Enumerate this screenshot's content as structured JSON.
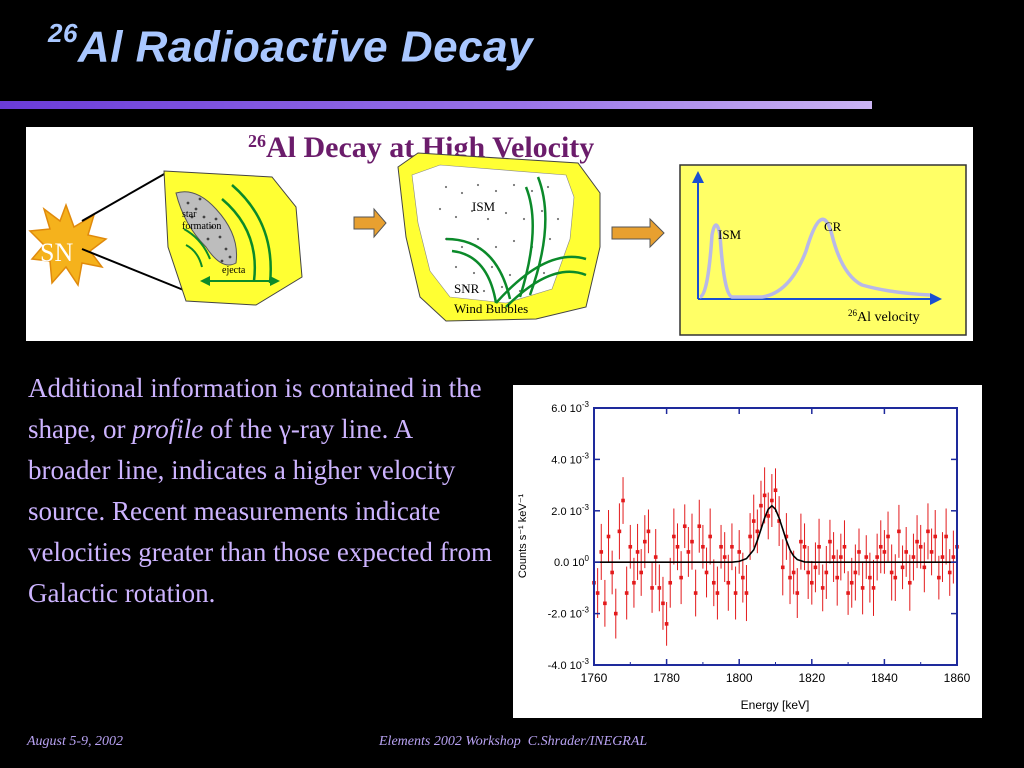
{
  "slide": {
    "title_sup": "26",
    "title_main": "Al Radioactive Decay",
    "colors": {
      "title": "#a9c7ff",
      "text": "#cdb4ff",
      "rule": "#7e58e0",
      "highlight": "#ffff66"
    }
  },
  "diagram": {
    "heading_sup": "26",
    "heading_main": "Al Decay at High Velocity",
    "sn_label": "SN",
    "star_formation_line1": "star",
    "star_formation_line2": "formation",
    "ejecta_label": "ejecta",
    "ism_label": "ISM",
    "snr_label": "SNR",
    "wind_bubbles_label": "Wind Bubbles",
    "profile_ism_label": "ISM",
    "profile_cr_label": "CR",
    "velocity_axis_sup": "26",
    "velocity_axis_label": "Al velocity"
  },
  "body": {
    "text_1": "Additional information is contained in the shape, or ",
    "text_italic": "profile",
    "text_2": " of the γ-ray line. A broader line, indicates a higher velocity source. Recent measurements indicate velocities greater than those expected from Galactic rotation."
  },
  "chart_data": {
    "type": "scatter",
    "xlabel": "Energy [keV]",
    "ylabel": "Counts s⁻¹ keV⁻¹",
    "xlim": [
      1760,
      1860
    ],
    "ylim": [
      -0.004,
      0.006
    ],
    "x_ticks": [
      "1760",
      "1780",
      "1800",
      "1820",
      "1840",
      "1860"
    ],
    "y_ticks": [
      {
        "mantissa": "-4.0 10",
        "exp": "-3"
      },
      {
        "mantissa": "-2.0 10",
        "exp": "-3"
      },
      {
        "mantissa": "0.0 10",
        "exp": "0"
      },
      {
        "mantissa": "2.0 10",
        "exp": "-3"
      },
      {
        "mantissa": "4.0 10",
        "exp": "-3"
      },
      {
        "mantissa": "6.0 10",
        "exp": "-3"
      }
    ],
    "series": [
      {
        "kind": "data-points-with-error-bars",
        "color": "#e31a1c",
        "x": [
          1760,
          1761,
          1762,
          1763,
          1764,
          1765,
          1766,
          1767,
          1768,
          1769,
          1770,
          1771,
          1772,
          1773,
          1774,
          1775,
          1776,
          1777,
          1778,
          1779,
          1780,
          1781,
          1782,
          1783,
          1784,
          1785,
          1786,
          1787,
          1788,
          1789,
          1790,
          1791,
          1792,
          1793,
          1794,
          1795,
          1796,
          1797,
          1798,
          1799,
          1800,
          1801,
          1802,
          1803,
          1804,
          1805,
          1806,
          1807,
          1808,
          1809,
          1810,
          1811,
          1812,
          1813,
          1814,
          1815,
          1816,
          1817,
          1818,
          1819,
          1820,
          1821,
          1822,
          1823,
          1824,
          1825,
          1826,
          1827,
          1828,
          1829,
          1830,
          1831,
          1832,
          1833,
          1834,
          1835,
          1836,
          1837,
          1838,
          1839,
          1840,
          1841,
          1842,
          1843,
          1844,
          1845,
          1846,
          1847,
          1848,
          1849,
          1850,
          1851,
          1852,
          1853,
          1854,
          1855,
          1856,
          1857,
          1858,
          1859,
          1860
        ],
        "y": [
          -0.0008,
          -0.0012,
          0.0004,
          -0.0016,
          0.001,
          -0.0004,
          -0.002,
          0.0012,
          0.0024,
          -0.0012,
          0.0006,
          -0.0008,
          0.0004,
          -0.0004,
          0.0008,
          0.0012,
          -0.001,
          0.0002,
          -0.001,
          -0.0016,
          -0.0024,
          -0.0008,
          0.001,
          0.0006,
          -0.0006,
          0.0014,
          0.0004,
          0.0008,
          -0.0012,
          0.0014,
          0.0006,
          -0.0004,
          0.001,
          -0.0008,
          -0.0012,
          0.0006,
          0.0002,
          -0.0008,
          0.0006,
          -0.0012,
          0.0004,
          -0.0006,
          -0.0012,
          0.001,
          0.0016,
          0.0012,
          0.0022,
          0.0026,
          0.0018,
          0.0024,
          0.0028,
          0.0016,
          -0.0002,
          0.001,
          -0.0006,
          -0.0004,
          -0.0012,
          0.0008,
          0.0006,
          -0.0004,
          -0.0008,
          -0.0002,
          0.0006,
          -0.001,
          -0.0004,
          0.0008,
          0.0002,
          -0.0006,
          0.0002,
          0.0006,
          -0.0012,
          -0.0008,
          -0.0004,
          0.0004,
          -0.001,
          0.0002,
          -0.0006,
          -0.001,
          0.0002,
          0.0006,
          0.0004,
          0.001,
          -0.0004,
          -0.0006,
          0.0012,
          -0.0002,
          0.0004,
          -0.0008,
          0.0002,
          0.0008,
          0.0006,
          -0.0002,
          0.0012,
          0.0004,
          0.001,
          -0.0006,
          0.0002,
          0.001,
          -0.0004,
          0.0002,
          0.0006
        ]
      },
      {
        "kind": "gaussian-fit",
        "color": "#000000",
        "x": [
          1760,
          1790,
          1798,
          1800,
          1802,
          1804,
          1805,
          1806,
          1807,
          1808,
          1809,
          1810,
          1811,
          1812,
          1813,
          1814,
          1815,
          1816,
          1818,
          1820,
          1860
        ],
        "y": [
          0.0,
          0.0,
          0.0,
          3e-05,
          0.00014,
          0.00048,
          0.00084,
          0.00128,
          0.00172,
          0.00206,
          0.0022,
          0.00206,
          0.00172,
          0.00128,
          0.00084,
          0.00048,
          0.00024,
          0.0001,
          1e-05,
          0.0,
          0.0
        ]
      }
    ]
  },
  "footer": {
    "date": "August 5-9, 2002",
    "credit": "Elements 2002 Workshop  C.Shrader/INEGRAL"
  }
}
